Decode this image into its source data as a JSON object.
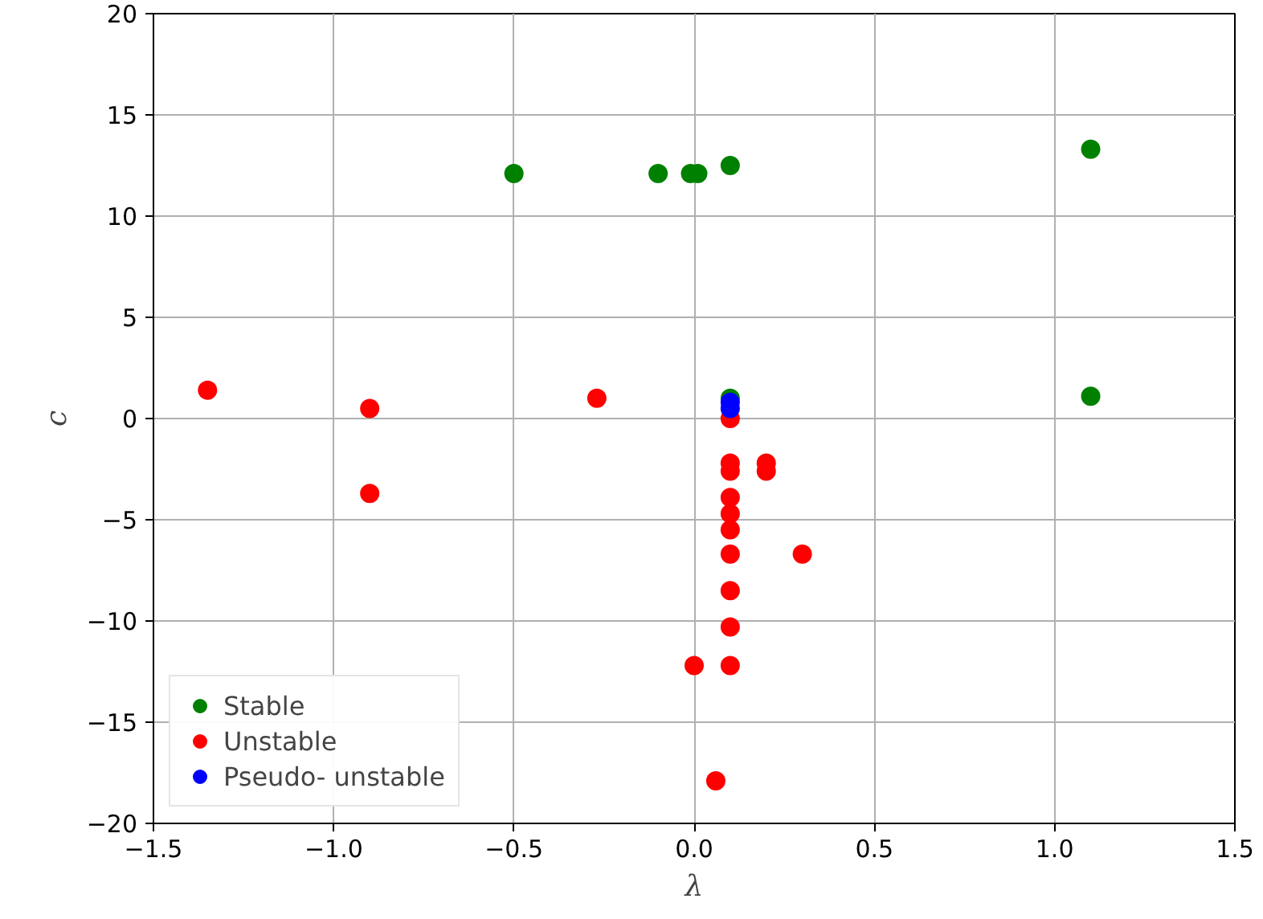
{
  "chart_data": {
    "type": "scatter",
    "xlabel": "λ",
    "ylabel": "c",
    "xlim": [
      -1.5,
      1.5
    ],
    "ylim": [
      -20,
      20
    ],
    "xticks": [
      {
        "value": -1.5,
        "label": "−1.5"
      },
      {
        "value": -1.0,
        "label": "−1.0"
      },
      {
        "value": -0.5,
        "label": "−0.5"
      },
      {
        "value": 0.0,
        "label": "0.0"
      },
      {
        "value": 0.5,
        "label": "0.5"
      },
      {
        "value": 1.0,
        "label": "1.0"
      },
      {
        "value": 1.5,
        "label": "1.5"
      }
    ],
    "yticks": [
      {
        "value": -20,
        "label": "−20"
      },
      {
        "value": -15,
        "label": "−15"
      },
      {
        "value": -10,
        "label": "−10"
      },
      {
        "value": -5,
        "label": "−5"
      },
      0,
      5,
      10,
      15,
      20
    ],
    "grid": true,
    "legend": "bottom left",
    "marker": "circle",
    "series": [
      {
        "name": "Stable",
        "color": "#008000",
        "x": [
          -0.5,
          -0.1,
          -0.01,
          0.01,
          0.1,
          1.1,
          1.1,
          0.1
        ],
        "values": [
          12.1,
          12.1,
          12.1,
          12.1,
          12.5,
          13.3,
          1.1,
          1.0
        ]
      },
      {
        "name": "Unstable",
        "color": "#ff0000",
        "x": [
          -1.35,
          -0.9,
          -0.9,
          -0.27,
          0.1,
          0.1,
          0.1,
          0.2,
          0.2,
          0.1,
          0.1,
          0.1,
          0.1,
          0.3,
          0.1,
          0.1,
          0.0,
          0.1,
          0.06
        ],
        "values": [
          1.4,
          0.5,
          -3.7,
          1.0,
          0.0,
          -2.2,
          -2.6,
          -2.2,
          -2.6,
          -3.9,
          -4.7,
          -5.5,
          -6.7,
          -6.7,
          -8.5,
          -10.3,
          -12.2,
          -12.2,
          -17.9
        ]
      },
      {
        "name": "Pseudo- unstable",
        "color": "#0000ff",
        "x": [
          0.1,
          0.1
        ],
        "values": [
          0.5,
          0.8
        ]
      }
    ]
  }
}
